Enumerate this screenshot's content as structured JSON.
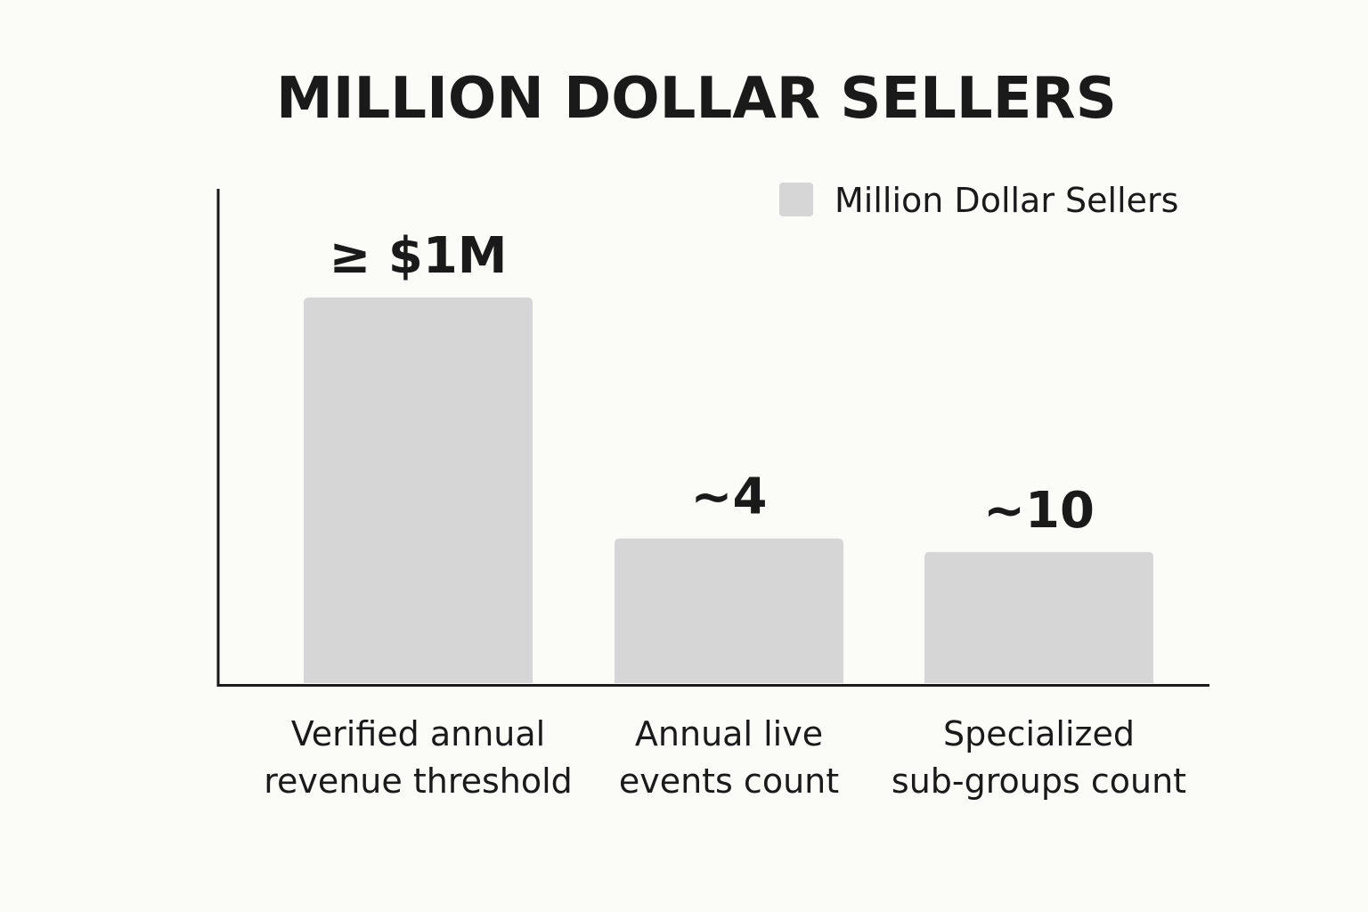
{
  "chart_data": {
    "type": "bar",
    "title": "MILLION DOLLAR SELLERS",
    "categories": [
      [
        "Verified annual",
        "revenue threshold"
      ],
      [
        "Annual live",
        "events count"
      ],
      [
        "Specialized",
        "sub-groups count"
      ]
    ],
    "series": [
      {
        "name": "Million Dollar Sellers",
        "values": [
          1000000,
          4,
          10
        ],
        "data_labels": [
          "≥ $1M",
          "~4",
          "~10"
        ],
        "relative_heights": [
          1.0,
          0.375,
          0.34
        ]
      }
    ],
    "legend_position": "top-right",
    "grid": false,
    "xlabel": "",
    "ylabel": "",
    "colors": {
      "bar": "#d6d6d6",
      "axis": "#1a1a1a",
      "text": "#1a1a1a",
      "background": "#fbfbf8"
    }
  }
}
